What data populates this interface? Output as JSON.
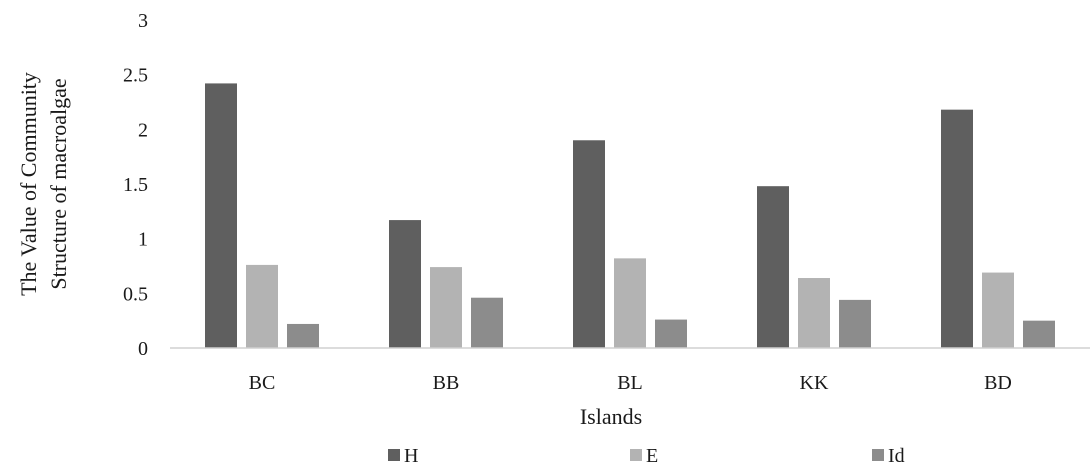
{
  "chart_data": {
    "type": "bar",
    "title": "",
    "xlabel": "Islands",
    "ylabel": [
      "The Value of Community",
      "Structure of macroalgae"
    ],
    "categories": [
      "BC",
      "BB",
      "BL",
      "KK",
      "BD"
    ],
    "ylim": [
      0,
      3
    ],
    "yticks": [
      "0",
      "0.5",
      "1",
      "1.5",
      "2",
      "2.5",
      "3"
    ],
    "grid": false,
    "legend_position": "bottom",
    "series": [
      {
        "name": "H",
        "color": "#5f5f5f",
        "values": [
          2.42,
          1.17,
          1.9,
          1.48,
          2.18
        ]
      },
      {
        "name": "E",
        "color": "#b3b3b3",
        "values": [
          0.76,
          0.74,
          0.82,
          0.64,
          0.69
        ]
      },
      {
        "name": "Id",
        "color": "#8c8c8c",
        "values": [
          0.22,
          0.46,
          0.26,
          0.44,
          0.25
        ]
      }
    ]
  }
}
